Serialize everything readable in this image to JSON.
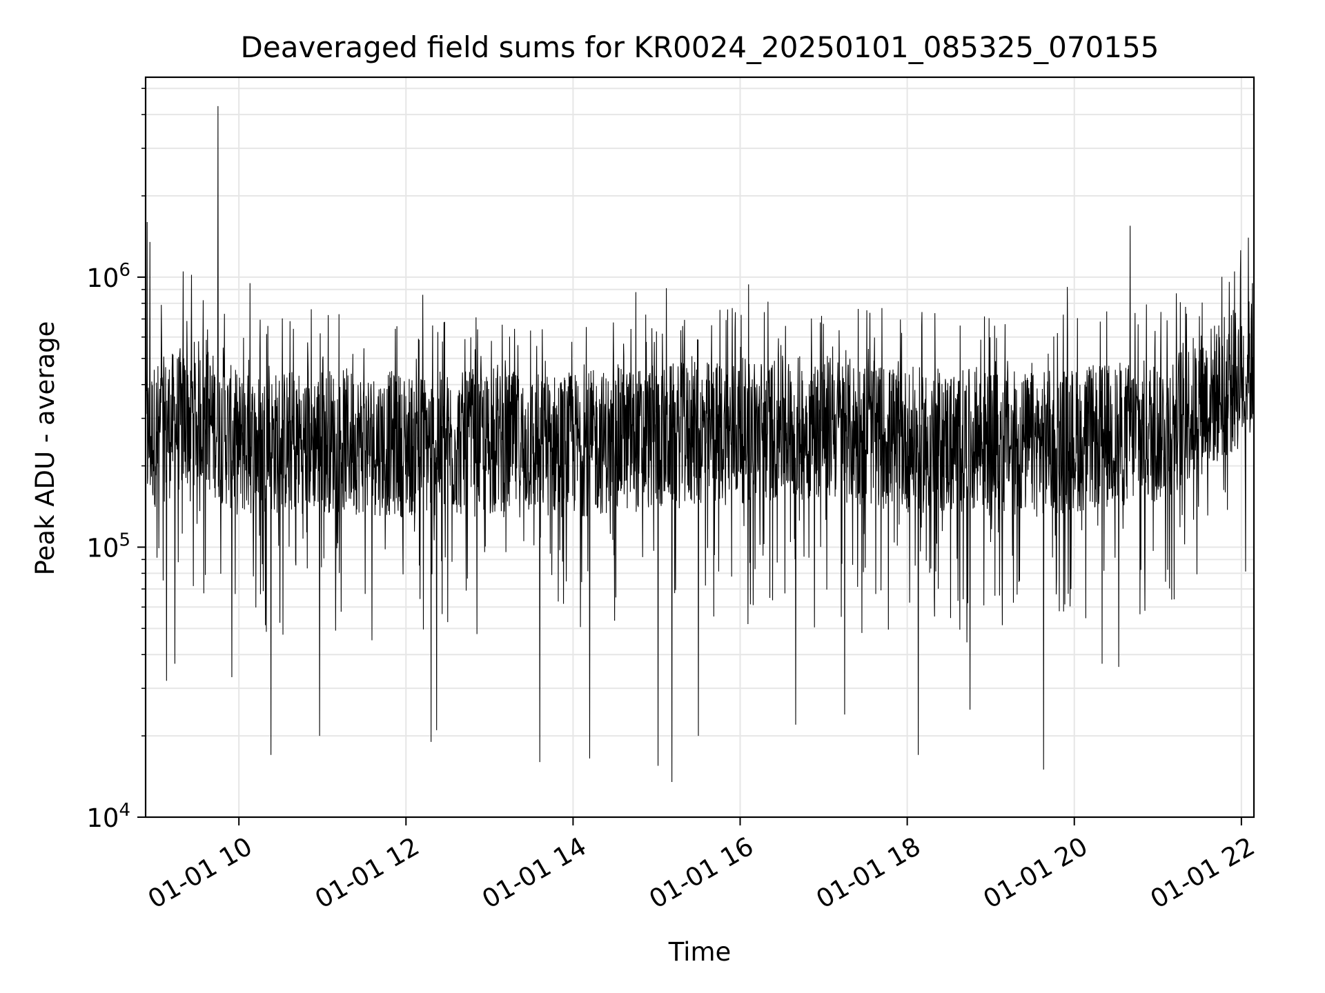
{
  "chart_data": {
    "type": "line",
    "title": "Deaveraged field sums for KR0024_20250101_085325_070155",
    "xlabel": "Time",
    "ylabel": "Peak ADU - average",
    "yscale": "log",
    "ylim": [
      10000,
      5500000
    ],
    "xlim": [
      "2025-01-01 08:53",
      "2025-01-01 22:09"
    ],
    "grid": true,
    "line_color": "#000000",
    "grid_color": "#e6e6e6",
    "x_ticks": [
      {
        "label": "01-01 10",
        "t": "2025-01-01 10:00"
      },
      {
        "label": "01-01 12",
        "t": "2025-01-01 12:00"
      },
      {
        "label": "01-01 14",
        "t": "2025-01-01 14:00"
      },
      {
        "label": "01-01 16",
        "t": "2025-01-01 16:00"
      },
      {
        "label": "01-01 18",
        "t": "2025-01-01 18:00"
      },
      {
        "label": "01-01 20",
        "t": "2025-01-01 20:00"
      },
      {
        "label": "01-01 22",
        "t": "2025-01-01 22:00"
      }
    ],
    "y_ticks": [
      {
        "base": "10",
        "exp": "4",
        "value": 10000
      },
      {
        "base": "10",
        "exp": "5",
        "value": 100000
      },
      {
        "base": "10",
        "exp": "6",
        "value": 1000000
      }
    ],
    "series": [
      {
        "trend": [
          {
            "t": "2025-01-01 08:53",
            "y": 250000
          },
          {
            "t": "2025-01-01 09:30",
            "y": 320000
          },
          {
            "t": "2025-01-01 10:00",
            "y": 240000
          },
          {
            "t": "2025-01-01 11:00",
            "y": 250000
          },
          {
            "t": "2025-01-01 12:00",
            "y": 240000
          },
          {
            "t": "2025-01-01 14:00",
            "y": 240000
          },
          {
            "t": "2025-01-01 16:00",
            "y": 270000
          },
          {
            "t": "2025-01-01 17:00",
            "y": 280000
          },
          {
            "t": "2025-01-01 18:00",
            "y": 250000
          },
          {
            "t": "2025-01-01 19:30",
            "y": 240000
          },
          {
            "t": "2025-01-01 21:00",
            "y": 270000
          },
          {
            "t": "2025-01-01 21:45",
            "y": 380000
          },
          {
            "t": "2025-01-01 22:09",
            "y": 460000
          }
        ],
        "spikes": [
          {
            "t": "2025-01-01 08:54",
            "y": 1600000
          },
          {
            "t": "2025-01-01 08:56",
            "y": 1350000
          },
          {
            "t": "2025-01-01 09:20",
            "y": 1050000
          },
          {
            "t": "2025-01-01 09:26",
            "y": 1020000
          },
          {
            "t": "2025-01-01 09:45",
            "y": 4300000
          },
          {
            "t": "2025-01-01 10:08",
            "y": 950000
          },
          {
            "t": "2025-01-01 10:52",
            "y": 760000
          },
          {
            "t": "2025-01-01 12:12",
            "y": 860000
          },
          {
            "t": "2025-01-01 14:45",
            "y": 880000
          },
          {
            "t": "2025-01-01 15:07",
            "y": 910000
          },
          {
            "t": "2025-01-01 16:06",
            "y": 940000
          },
          {
            "t": "2025-01-01 19:55",
            "y": 920000
          },
          {
            "t": "2025-01-01 20:40",
            "y": 1550000
          },
          {
            "t": "2025-01-01 21:55",
            "y": 1050000
          },
          {
            "t": "2025-01-01 22:05",
            "y": 1400000
          },
          {
            "t": "2025-01-01 22:08",
            "y": 950000
          }
        ],
        "dips": [
          {
            "t": "2025-01-01 09:08",
            "y": 32000
          },
          {
            "t": "2025-01-01 09:14",
            "y": 37000
          },
          {
            "t": "2025-01-01 09:55",
            "y": 33000
          },
          {
            "t": "2025-01-01 10:23",
            "y": 17000
          },
          {
            "t": "2025-01-01 10:58",
            "y": 20000
          },
          {
            "t": "2025-01-01 12:18",
            "y": 19000
          },
          {
            "t": "2025-01-01 12:22",
            "y": 21000
          },
          {
            "t": "2025-01-01 13:36",
            "y": 16000
          },
          {
            "t": "2025-01-01 14:12",
            "y": 16500
          },
          {
            "t": "2025-01-01 15:01",
            "y": 15500
          },
          {
            "t": "2025-01-01 15:11",
            "y": 13500
          },
          {
            "t": "2025-01-01 15:30",
            "y": 20000
          },
          {
            "t": "2025-01-01 16:40",
            "y": 22000
          },
          {
            "t": "2025-01-01 17:15",
            "y": 24000
          },
          {
            "t": "2025-01-01 18:08",
            "y": 17000
          },
          {
            "t": "2025-01-01 18:45",
            "y": 25000
          },
          {
            "t": "2025-01-01 19:38",
            "y": 15000
          },
          {
            "t": "2025-01-01 20:20",
            "y": 37000
          },
          {
            "t": "2025-01-01 20:32",
            "y": 36000
          }
        ]
      }
    ]
  }
}
